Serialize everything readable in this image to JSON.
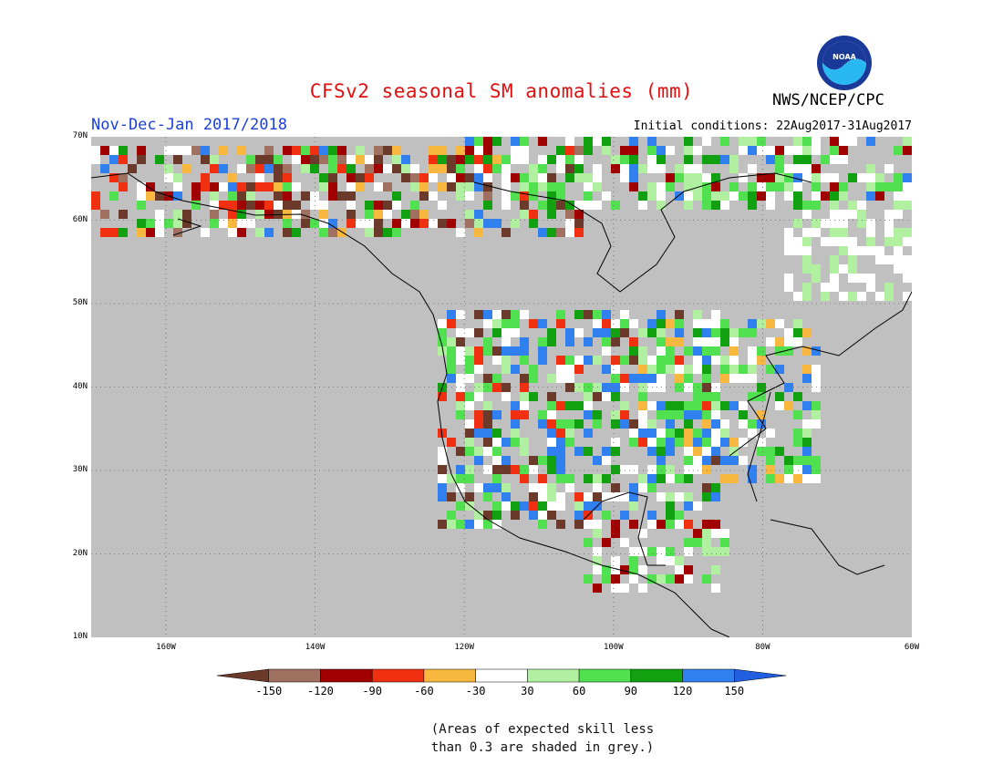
{
  "header": {
    "title": "CFSv2 seasonal SM anomalies (mm)",
    "period": "Nov-Dec-Jan 2017/2018",
    "initial_conditions": "Initial conditions: 22Aug2017-31Aug2017",
    "agency": "NWS/NCEP/CPC",
    "logo_text": "NOAA"
  },
  "map": {
    "lat_labels": [
      "70N",
      "60N",
      "50N",
      "40N",
      "30N",
      "20N",
      "10N"
    ],
    "lon_labels": [
      "160W",
      "140W",
      "120W",
      "100W",
      "80W",
      "60W"
    ],
    "grey_color": "#c0c0c0",
    "land_line_color": "#000000"
  },
  "legend": {
    "labels": [
      "-150",
      "-120",
      "-90",
      "-60",
      "-30",
      "30",
      "60",
      "90",
      "120",
      "150"
    ],
    "colors": [
      "#6b3a2a",
      "#a07060",
      "#a00000",
      "#f03010",
      "#f8b840",
      "#ffffff",
      "#b0f0a0",
      "#50e050",
      "#10a010",
      "#3080f0",
      "#2060e0"
    ]
  },
  "footnote": {
    "line1": "(Areas of expected skill less",
    "line2": "than 0.3 are shaded in grey.)"
  }
}
